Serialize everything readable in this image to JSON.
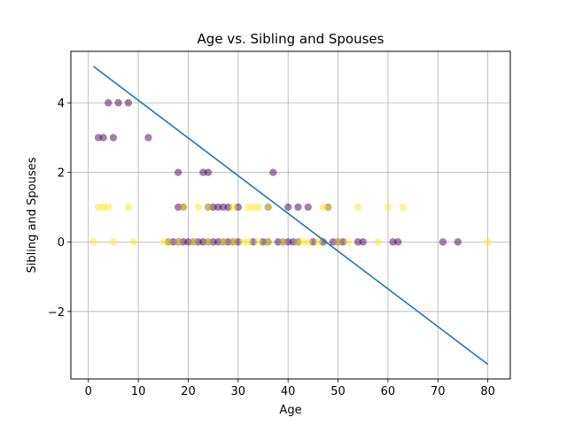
{
  "chart_data": {
    "type": "scatter",
    "title": "Age vs. Sibling and Spouses",
    "xlabel": "Age",
    "ylabel": "Sibling and Spouses",
    "xlim": [
      -3.5,
      84.5
    ],
    "ylim": [
      -3.94,
      5.48
    ],
    "xticks": [
      0,
      10,
      20,
      30,
      40,
      50,
      60,
      70,
      80
    ],
    "yticks": [
      -2,
      0,
      2,
      4
    ],
    "ytick_labels": [
      "−2",
      "0",
      "2",
      "4"
    ],
    "grid": true,
    "colors": {
      "class_0": "#440154",
      "class_1": "#fde725",
      "line": "#1f77b4"
    },
    "point_alpha": 0.5,
    "series": [
      {
        "class": 0,
        "points": [
          [
            2,
            3
          ],
          [
            3,
            3
          ],
          [
            4,
            4
          ],
          [
            5,
            3
          ],
          [
            6,
            4
          ],
          [
            8,
            4
          ],
          [
            12,
            3
          ],
          [
            18,
            2
          ],
          [
            23,
            2
          ],
          [
            24,
            2
          ],
          [
            37,
            2
          ],
          [
            18,
            1
          ],
          [
            19,
            1
          ],
          [
            24,
            1
          ],
          [
            25,
            1
          ],
          [
            26,
            1
          ],
          [
            27,
            1
          ],
          [
            28,
            1
          ],
          [
            30,
            1
          ],
          [
            36,
            1
          ],
          [
            40,
            1
          ],
          [
            42,
            1
          ],
          [
            44,
            1
          ],
          [
            48,
            1
          ],
          [
            16,
            0
          ],
          [
            17,
            0
          ],
          [
            18,
            0
          ],
          [
            19,
            0
          ],
          [
            20,
            0
          ],
          [
            21,
            0
          ],
          [
            22,
            0
          ],
          [
            23,
            0
          ],
          [
            24,
            0
          ],
          [
            25,
            0
          ],
          [
            26,
            0
          ],
          [
            27,
            0
          ],
          [
            28,
            0
          ],
          [
            29,
            0
          ],
          [
            30,
            0
          ],
          [
            33,
            0
          ],
          [
            35,
            0
          ],
          [
            36,
            0
          ],
          [
            38,
            0
          ],
          [
            39,
            0
          ],
          [
            40,
            0
          ],
          [
            41,
            0
          ],
          [
            42,
            0
          ],
          [
            45,
            0
          ],
          [
            47,
            0
          ],
          [
            49,
            0
          ],
          [
            50,
            0
          ],
          [
            51,
            0
          ],
          [
            54,
            0
          ],
          [
            55,
            0
          ],
          [
            61,
            0
          ],
          [
            62,
            0
          ],
          [
            71,
            0
          ],
          [
            74,
            0
          ]
        ]
      },
      {
        "class": 1,
        "points": [
          [
            2,
            1
          ],
          [
            3,
            1
          ],
          [
            4,
            1
          ],
          [
            8,
            1
          ],
          [
            19,
            1
          ],
          [
            22,
            1
          ],
          [
            24,
            1
          ],
          [
            29,
            1
          ],
          [
            32,
            1
          ],
          [
            33,
            1
          ],
          [
            34,
            1
          ],
          [
            36,
            1
          ],
          [
            47,
            1
          ],
          [
            48,
            1
          ],
          [
            54,
            1
          ],
          [
            60,
            1
          ],
          [
            63,
            1
          ],
          [
            1,
            0
          ],
          [
            5,
            0
          ],
          [
            9,
            0
          ],
          [
            15,
            0
          ],
          [
            16,
            0
          ],
          [
            18,
            0
          ],
          [
            21,
            0
          ],
          [
            24,
            0
          ],
          [
            27,
            0
          ],
          [
            29,
            0
          ],
          [
            31,
            0
          ],
          [
            32,
            0
          ],
          [
            34,
            0
          ],
          [
            36,
            0
          ],
          [
            39,
            0
          ],
          [
            42,
            0
          ],
          [
            43,
            0
          ],
          [
            44,
            0
          ],
          [
            46,
            0
          ],
          [
            50,
            0
          ],
          [
            52,
            0
          ],
          [
            58,
            0
          ],
          [
            80,
            0
          ]
        ]
      }
    ],
    "regression_line": {
      "x": [
        1,
        80
      ],
      "y": [
        5.05,
        -3.52
      ]
    }
  }
}
